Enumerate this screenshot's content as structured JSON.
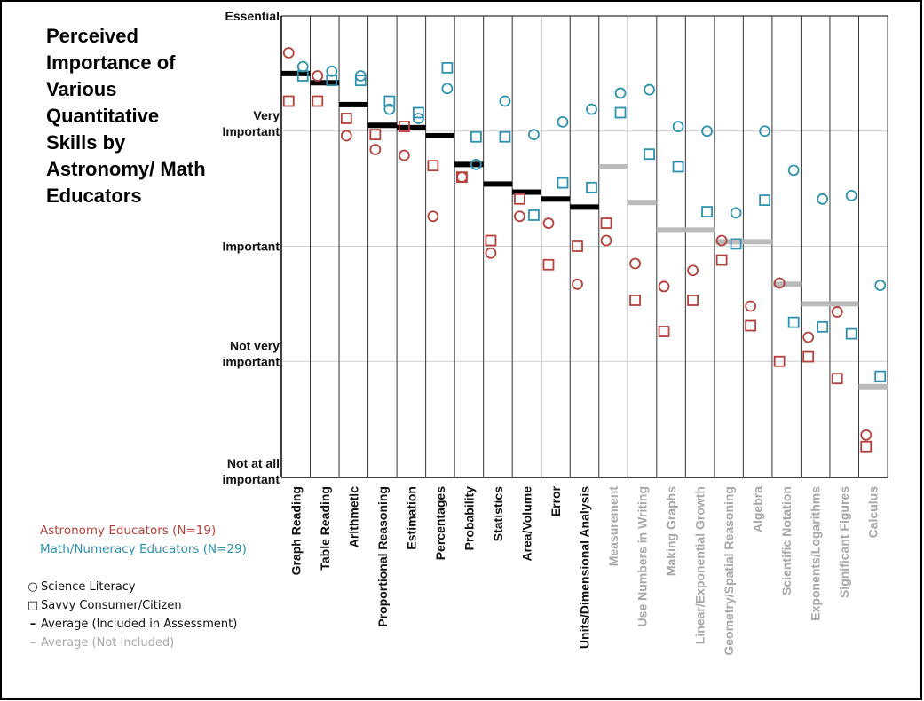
{
  "title": "Perceived Importance of Various Quantitative Skills by Astronomy/ Math Educators",
  "legend": {
    "astronomy": "Astronomy Educators (N=19)",
    "math": "Math/Numeracy Educators (N=29)",
    "science_literacy": "Science Literacy",
    "savvy_consumer": "Savvy Consumer/Citizen",
    "avg_included": "Average (Included in Assessment)",
    "avg_not_included": "Average (Not Included)"
  },
  "colors": {
    "astronomy": "#b5413c",
    "math": "#2e93b0",
    "avg_included": "#000000",
    "avg_not_included": "#bbbbbb",
    "included_label": "#111111",
    "not_included_label": "#a8a8a8"
  },
  "chart_data": {
    "type": "scatter",
    "title": "Perceived Importance of Various Quantitative Skills by Astronomy/ Math Educators",
    "ylim": [
      1,
      5
    ],
    "y_ticks": [
      {
        "value": 5,
        "label": "Essential"
      },
      {
        "value": 4,
        "label": "Very Important"
      },
      {
        "value": 3,
        "label": "Important"
      },
      {
        "value": 2,
        "label": "Not very important"
      },
      {
        "value": 1,
        "label": "Not at all important"
      }
    ],
    "grid": true,
    "categories": [
      {
        "name": "Graph Reading",
        "included": true,
        "avg": 4.5,
        "astro_circle": 4.68,
        "astro_square": 4.26,
        "math_circle": 4.56,
        "math_square": 4.48
      },
      {
        "name": "Table Reading",
        "included": true,
        "avg": 4.42,
        "astro_circle": 4.48,
        "astro_square": 4.26,
        "math_circle": 4.52,
        "math_square": 4.44
      },
      {
        "name": "Arithmetic",
        "included": true,
        "avg": 4.23,
        "astro_circle": 3.96,
        "astro_square": 4.11,
        "math_circle": 4.48,
        "math_square": 4.44
      },
      {
        "name": "Proportional Reasoning",
        "included": true,
        "avg": 4.05,
        "astro_circle": 3.84,
        "astro_square": 3.97,
        "math_circle": 4.19,
        "math_square": 4.26
      },
      {
        "name": "Estimation",
        "included": true,
        "avg": 4.03,
        "astro_circle": 3.79,
        "astro_square": 4.04,
        "math_circle": 4.11,
        "math_square": 4.16
      },
      {
        "name": "Percentages",
        "included": true,
        "avg": 3.96,
        "astro_circle": 3.26,
        "astro_square": 3.7,
        "math_circle": 4.37,
        "math_square": 4.55
      },
      {
        "name": "Probability",
        "included": true,
        "avg": 3.71,
        "astro_circle": 3.6,
        "astro_square": 3.6,
        "math_circle": 3.71,
        "math_square": 3.95
      },
      {
        "name": "Statistics",
        "included": true,
        "avg": 3.54,
        "astro_circle": 2.94,
        "astro_square": 3.05,
        "math_circle": 4.26,
        "math_square": 3.95
      },
      {
        "name": "Area/Volume",
        "included": true,
        "avg": 3.47,
        "astro_circle": 3.26,
        "astro_square": 3.41,
        "math_circle": 3.97,
        "math_square": 3.27
      },
      {
        "name": "Error",
        "included": true,
        "avg": 3.41,
        "astro_circle": 3.2,
        "astro_square": 2.84,
        "math_circle": 4.08,
        "math_square": 3.55
      },
      {
        "name": "Units/Dimensional Analysis",
        "included": true,
        "avg": 3.34,
        "astro_circle": 2.67,
        "astro_square": 3.0,
        "math_circle": 4.19,
        "math_square": 3.51
      },
      {
        "name": "Measurement",
        "included": false,
        "avg": 3.69,
        "astro_circle": 3.05,
        "astro_square": 3.2,
        "math_circle": 4.33,
        "math_square": 4.16
      },
      {
        "name": "Use Numbers in Writing",
        "included": false,
        "avg": 3.38,
        "astro_circle": 2.85,
        "astro_square": 2.53,
        "math_circle": 4.36,
        "math_square": 3.8
      },
      {
        "name": "Making Graphs",
        "included": false,
        "avg": 3.14,
        "astro_circle": 2.65,
        "astro_square": 2.26,
        "math_circle": 4.04,
        "math_square": 3.69
      },
      {
        "name": "Linear/Exponential Growth",
        "included": false,
        "avg": 3.14,
        "astro_circle": 2.79,
        "astro_square": 2.53,
        "math_circle": 4.0,
        "math_square": 3.3
      },
      {
        "name": "Geometry/Spatial Reasoning",
        "included": false,
        "avg": 3.04,
        "astro_circle": 3.05,
        "astro_square": 2.88,
        "math_circle": 3.29,
        "math_square": 3.02
      },
      {
        "name": "Algebra",
        "included": false,
        "avg": 3.04,
        "astro_circle": 2.48,
        "astro_square": 2.31,
        "math_circle": 4.0,
        "math_square": 3.4
      },
      {
        "name": "Scientific Notation",
        "included": false,
        "avg": 2.67,
        "astro_circle": 2.68,
        "astro_square": 2.0,
        "math_circle": 3.66,
        "math_square": 2.34
      },
      {
        "name": "Exponents/Logarithms",
        "included": false,
        "avg": 2.5,
        "astro_circle": 2.21,
        "astro_square": 2.04,
        "math_circle": 3.41,
        "math_square": 2.3
      },
      {
        "name": "Significant Figures",
        "included": false,
        "avg": 2.5,
        "astro_circle": 2.43,
        "astro_square": 1.85,
        "math_circle": 3.44,
        "math_square": 2.24
      },
      {
        "name": "Calculus",
        "included": false,
        "avg": 1.78,
        "astro_circle": 1.36,
        "astro_square": 1.26,
        "math_circle": 2.66,
        "math_square": 1.87
      }
    ]
  }
}
